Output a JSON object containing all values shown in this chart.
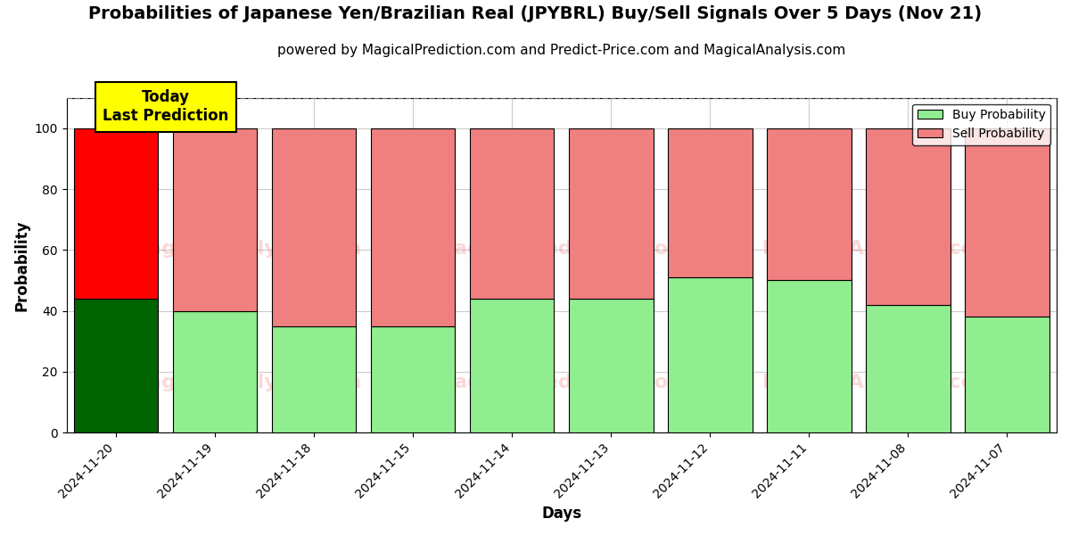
{
  "title": "Probabilities of Japanese Yen/Brazilian Real (JPYBRL) Buy/Sell Signals Over 5 Days (Nov 21)",
  "subtitle": "powered by MagicalPrediction.com and Predict-Price.com and MagicalAnalysis.com",
  "xlabel": "Days",
  "ylabel": "Probability",
  "categories": [
    "2024-11-20",
    "2024-11-19",
    "2024-11-18",
    "2024-11-15",
    "2024-11-14",
    "2024-11-13",
    "2024-11-12",
    "2024-11-11",
    "2024-11-08",
    "2024-11-07"
  ],
  "buy_values": [
    44,
    40,
    35,
    35,
    44,
    44,
    51,
    50,
    42,
    38
  ],
  "sell_values": [
    56,
    60,
    65,
    65,
    56,
    56,
    49,
    50,
    58,
    62
  ],
  "buy_color_today": "#006400",
  "sell_color_today": "#ff0000",
  "buy_color_normal": "#90EE90",
  "sell_color_normal": "#F08080",
  "bar_edge_color": "#000000",
  "ylim": [
    0,
    110
  ],
  "yticks": [
    0,
    20,
    40,
    60,
    80,
    100
  ],
  "dashed_line_y": 110,
  "dashed_line_color": "#808080",
  "annotation_text": "Today\nLast Prediction",
  "annotation_bg": "#ffff00",
  "legend_buy_label": "Buy Probability",
  "legend_sell_label": "Sell Probability",
  "watermark_color": "#F08080",
  "watermark_alpha": 0.3,
  "grid_color": "#cccccc",
  "background_color": "#ffffff",
  "title_fontsize": 14,
  "subtitle_fontsize": 11,
  "axis_label_fontsize": 12,
  "tick_fontsize": 10,
  "bar_width": 0.85
}
